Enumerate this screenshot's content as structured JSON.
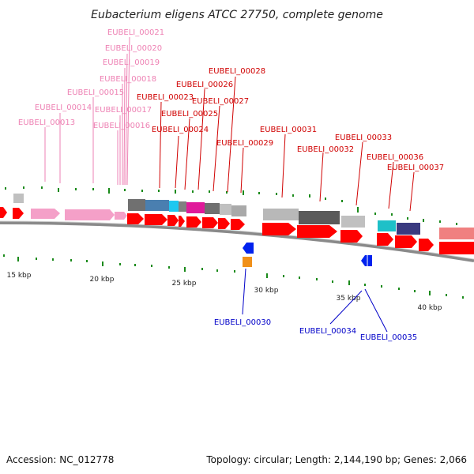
{
  "title": "Eubacterium eligens ATCC 27750, complete genome",
  "footer": {
    "accession": "Accession: NC_012778",
    "summary": "Topology: circular; Length: 2,144,190 bp; Genes: 2,066"
  },
  "scale": {
    "ticks": [
      "15 kbp",
      "20 kbp",
      "25 kbp",
      "30 kbp",
      "35 kbp",
      "40 kbp"
    ]
  },
  "colors": {
    "forward_gene": "#ff0000",
    "pink_label": "#ee82b4",
    "red_label": "#d00000",
    "blue_label": "#0000c8",
    "backbone": "#8a8a8a",
    "tick_green": "#1a8a1a"
  },
  "labels": {
    "eubeli_00013": "EUBELI_00013",
    "eubeli_00014": "EUBELI_00014",
    "eubeli_00015": "EUBELI_00015",
    "eubeli_00016": "EUBELI_00016",
    "eubeli_00017": "EUBELI_00017",
    "eubeli_00018": "EUBELI_00018",
    "eubeli_00019": "EUBELI_00019",
    "eubeli_00020": "EUBELI_00020",
    "eubeli_00021": "EUBELI_00021",
    "eubeli_00023": "EUBELI_00023",
    "eubeli_00024": "EUBELI_00024",
    "eubeli_00025": "EUBELI_00025",
    "eubeli_00026": "EUBELI_00026",
    "eubeli_00027": "EUBELI_00027",
    "eubeli_00028": "EUBELI_00028",
    "eubeli_00029": "EUBELI_00029",
    "eubeli_00031": "EUBELI_00031",
    "eubeli_00032": "EUBELI_00032",
    "eubeli_00033": "EUBELI_00033",
    "eubeli_00036": "EUBELI_00036",
    "eubeli_00037": "EUBELI_00037",
    "eubeli_00030": "EUBELI_00030",
    "eubeli_00034": "EUBELI_00034",
    "eubeli_00035": "EUBELI_00035"
  }
}
